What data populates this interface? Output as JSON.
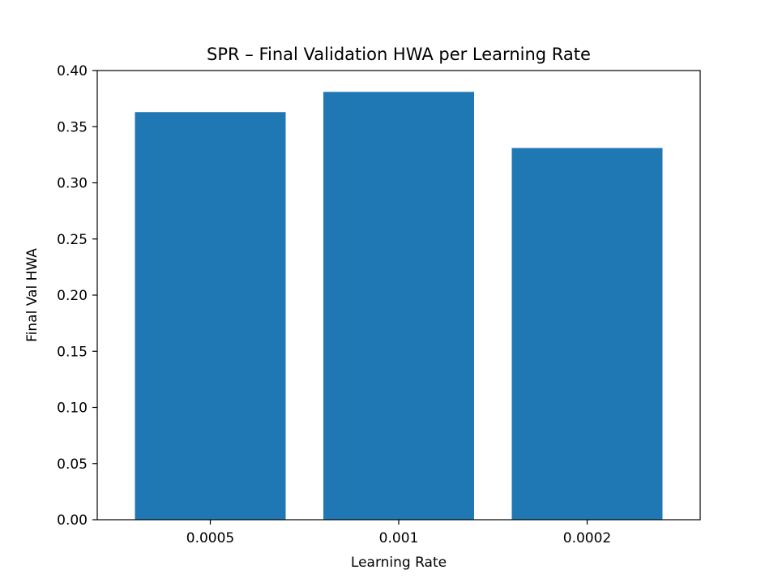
{
  "chart_data": {
    "type": "bar",
    "title": "SPR – Final Validation HWA per Learning Rate",
    "xlabel": "Learning Rate",
    "ylabel": "Final Val HWA",
    "categories": [
      "0.0005",
      "0.001",
      "0.0002"
    ],
    "values": [
      0.363,
      0.381,
      0.331
    ],
    "ylim": [
      0,
      0.4
    ],
    "yticks": [
      "0.00",
      "0.05",
      "0.10",
      "0.15",
      "0.20",
      "0.25",
      "0.30",
      "0.35",
      "0.40"
    ],
    "grid": false,
    "bar_color": "#1f77b4"
  }
}
